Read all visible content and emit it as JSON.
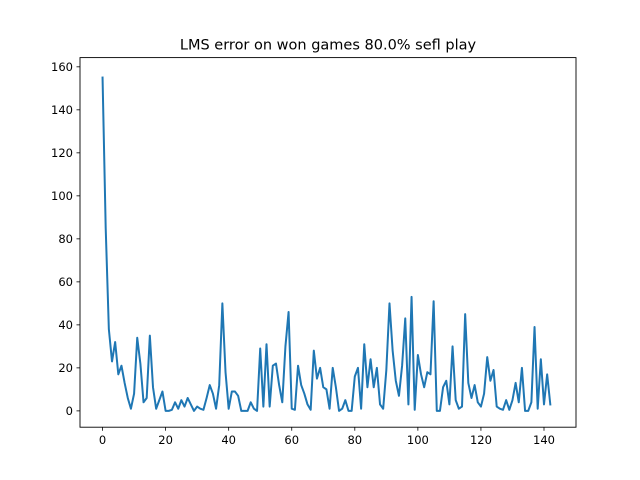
{
  "chart_data": {
    "type": "line",
    "title": "LMS error on won games 80.0% sefl play",
    "xlabel": "",
    "ylabel": "",
    "xlim": [
      -7.15,
      150.15
    ],
    "ylim": [
      -7.59,
      164.29
    ],
    "x_ticks": [
      0,
      20,
      40,
      60,
      80,
      100,
      120,
      140
    ],
    "y_ticks": [
      0,
      20,
      40,
      60,
      80,
      100,
      120,
      140,
      160
    ],
    "grid": false,
    "legend": "none",
    "series": [
      {
        "color": "#1f77b4",
        "x_start": 0,
        "x_step": 1,
        "values": [
          155,
          85,
          38,
          23,
          32,
          17,
          21,
          13,
          6,
          1,
          8,
          34,
          22,
          4,
          6,
          35,
          11,
          1,
          5,
          9,
          0,
          0,
          0.5,
          4,
          1,
          5,
          2,
          6,
          3,
          0,
          2,
          1,
          0.5,
          6,
          12,
          8,
          1,
          12,
          50,
          18,
          1,
          9,
          9,
          7,
          0,
          0,
          0,
          4,
          1,
          0,
          29,
          2,
          31,
          2,
          21,
          22,
          12,
          4,
          30,
          46,
          1,
          0.5,
          21,
          12,
          8,
          3,
          0.5,
          28,
          15,
          20,
          11,
          10,
          1,
          20,
          11,
          0,
          1,
          5,
          0,
          0,
          16,
          20,
          1,
          31,
          11,
          24,
          11,
          20,
          3,
          1,
          19,
          50,
          28,
          14,
          7,
          21,
          43,
          3,
          53,
          0.5,
          26,
          17,
          11,
          18,
          17,
          51,
          0,
          0,
          11,
          14,
          3,
          30,
          5,
          1,
          2,
          45,
          13,
          6,
          12,
          4,
          2,
          8,
          25,
          14,
          19,
          2,
          1,
          0.5,
          5,
          0.5,
          5,
          13,
          4,
          20,
          0,
          0,
          4,
          39,
          1,
          24,
          3,
          17,
          3
        ]
      }
    ]
  }
}
